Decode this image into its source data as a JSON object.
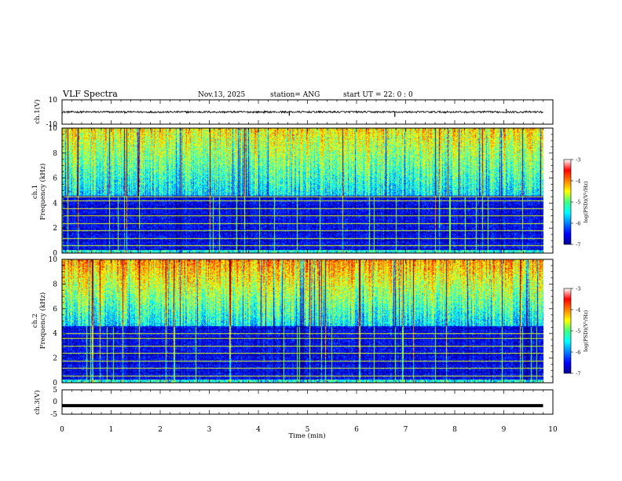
{
  "header": {
    "title": "VLF Spectra",
    "date": "Nov.13, 2025",
    "station": "station= ANG",
    "start": "start  UT  =   22: 0  : 0"
  },
  "chart_data": [
    {
      "type": "line",
      "name": "ch1-waveform",
      "ylabel": "ch.1(V)",
      "ylim": [
        -10,
        10
      ],
      "y_ticks": [
        "10",
        "-10"
      ],
      "baseline": 0,
      "spikes": [
        {
          "t": 4.63,
          "v": -3
        },
        {
          "t": 6.78,
          "v": -4
        },
        {
          "t": 9.05,
          "v": 2.5
        }
      ]
    },
    {
      "type": "heatmap",
      "name": "ch1-spectrogram",
      "ylabel": "ch.1\nFrequency (kHz)",
      "ylabel_line1": "ch.1",
      "ylabel_line2": "Frequency (kHz)",
      "ylim": [
        0,
        10
      ],
      "y_ticks": [
        "0",
        "2",
        "4",
        "6",
        "8",
        "10"
      ],
      "xlim": [
        0,
        10
      ],
      "data_end_min": 9.8,
      "colorbar": {
        "label": "log(PSD)(V²/Hz)",
        "ticks": [
          "-3",
          "-4",
          "-5",
          "-6",
          "-7"
        ],
        "range": [
          -7,
          -3
        ]
      },
      "hum_lines_khz": [
        0.6,
        1.2,
        1.8,
        2.4,
        3.0,
        3.6,
        4.2,
        4.5
      ]
    },
    {
      "type": "heatmap",
      "name": "ch2-spectrogram",
      "ylabel": "ch.2\nFrequency (kHz)",
      "ylabel_line1": "ch.2",
      "ylabel_line2": "Frequency (kHz)",
      "ylim": [
        0,
        10
      ],
      "y_ticks": [
        "0",
        "2",
        "4",
        "6",
        "8",
        "10"
      ],
      "xlim": [
        0,
        10
      ],
      "data_end_min": 9.8,
      "colorbar": {
        "label": "log(PSD)(V²/Hz)",
        "ticks": [
          "-3",
          "-4",
          "-5",
          "-6",
          "-7"
        ],
        "range": [
          -7,
          -3
        ]
      },
      "hum_lines_khz": [
        0.6,
        1.2,
        1.8,
        2.4,
        3.0,
        3.6,
        4.0
      ]
    },
    {
      "type": "line",
      "name": "ch3-waveform",
      "ylabel": "ch.3(V)",
      "ylim": [
        -5,
        5
      ],
      "y_ticks": [
        "5",
        "0",
        "-5"
      ],
      "baseline": -1.5
    }
  ],
  "xaxis": {
    "label": "Time  (min)",
    "range": [
      0,
      10
    ],
    "ticks": [
      "0",
      "1",
      "2",
      "3",
      "4",
      "5",
      "6",
      "7",
      "8",
      "9",
      "10"
    ]
  },
  "colors": {
    "jet": [
      "#00008f",
      "#0000ff",
      "#0080ff",
      "#00ffff",
      "#80ff80",
      "#ffff00",
      "#ff8000",
      "#ff0000",
      "#800000"
    ]
  }
}
